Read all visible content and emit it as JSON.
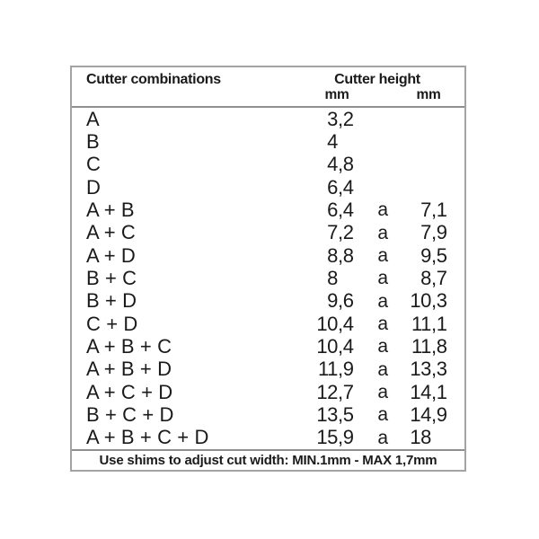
{
  "table": {
    "header": {
      "combinations": "Cutter combinations",
      "height": "Cutter height",
      "unit_min": "mm",
      "unit_max": "mm"
    },
    "rows": [
      {
        "label": "A",
        "min_int": "3",
        "min_dec": ",2",
        "sep": "",
        "max_int": "",
        "max_dec": ""
      },
      {
        "label": "B",
        "min_int": "4",
        "min_dec": "",
        "sep": "",
        "max_int": "",
        "max_dec": ""
      },
      {
        "label": "C",
        "min_int": "4",
        "min_dec": ",8",
        "sep": "",
        "max_int": "",
        "max_dec": ""
      },
      {
        "label": "D",
        "min_int": "6",
        "min_dec": ",4",
        "sep": "",
        "max_int": "",
        "max_dec": ""
      },
      {
        "label": "A + B",
        "min_int": "6",
        "min_dec": ",4",
        "sep": "a",
        "max_int": "7",
        "max_dec": ",1"
      },
      {
        "label": "A + C",
        "min_int": "7",
        "min_dec": ",2",
        "sep": "a",
        "max_int": "7",
        "max_dec": ",9"
      },
      {
        "label": "A + D",
        "min_int": "8",
        "min_dec": ",8",
        "sep": "a",
        "max_int": "9",
        "max_dec": ",5"
      },
      {
        "label": "B + C",
        "min_int": "8",
        "min_dec": "",
        "sep": "a",
        "max_int": "8",
        "max_dec": ",7"
      },
      {
        "label": "B + D",
        "min_int": "9",
        "min_dec": ",6",
        "sep": "a",
        "max_int": "10",
        "max_dec": ",3"
      },
      {
        "label": "C + D",
        "min_int": "10",
        "min_dec": ",4",
        "sep": "a",
        "max_int": "11",
        "max_dec": ",1"
      },
      {
        "label": "A + B + C",
        "min_int": "10",
        "min_dec": ",4",
        "sep": "a",
        "max_int": "11",
        "max_dec": ",8"
      },
      {
        "label": "A + B + D",
        "min_int": "11",
        "min_dec": ",9",
        "sep": "a",
        "max_int": "13",
        "max_dec": ",3"
      },
      {
        "label": "A + C + D",
        "min_int": "12",
        "min_dec": ",7",
        "sep": "a",
        "max_int": "14",
        "max_dec": ",1"
      },
      {
        "label": "B + C + D",
        "min_int": "13",
        "min_dec": ",5",
        "sep": "a",
        "max_int": "14",
        "max_dec": ",9"
      },
      {
        "label": "A + B + C + D",
        "min_int": "15",
        "min_dec": ",9",
        "sep": "a",
        "max_int": "18",
        "max_dec": ""
      }
    ],
    "footer_note": "Use shims to adjust cut width: MIN.1mm - MAX 1,7mm",
    "colors": {
      "text": "#1a1a1a",
      "border": "#a3a3a3",
      "rule": "#8f8f8f",
      "background": "#ffffff"
    }
  }
}
